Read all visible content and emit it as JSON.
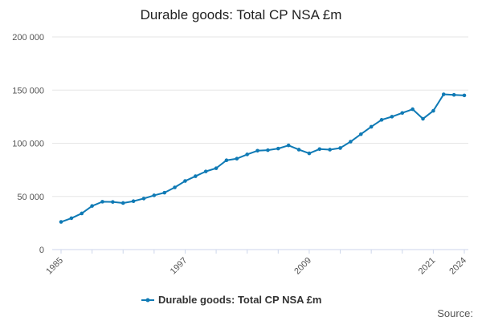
{
  "chart_data": {
    "type": "line",
    "title": "Durable goods: Total CP NSA £m",
    "xlabel": "",
    "ylabel": "",
    "x": [
      1985,
      1986,
      1987,
      1988,
      1989,
      1990,
      1991,
      1992,
      1993,
      1994,
      1995,
      1996,
      1997,
      1998,
      1999,
      2000,
      2001,
      2002,
      2003,
      2004,
      2005,
      2006,
      2007,
      2008,
      2009,
      2010,
      2011,
      2012,
      2013,
      2014,
      2015,
      2016,
      2017,
      2018,
      2019,
      2020,
      2021,
      2022,
      2023,
      2024
    ],
    "series": [
      {
        "name": "Durable goods: Total CP NSA £m",
        "color": "#0f7ab5",
        "values": [
          26000,
          29500,
          34000,
          41000,
          45000,
          44800,
          43800,
          45500,
          48000,
          51000,
          53500,
          58500,
          64500,
          69000,
          73500,
          76500,
          84000,
          85500,
          89500,
          93000,
          93500,
          95000,
          98000,
          94000,
          90500,
          94500,
          94000,
          95500,
          101500,
          108500,
          115500,
          122000,
          125000,
          128500,
          132000,
          123000,
          130500,
          146000,
          145500,
          145000
        ]
      }
    ],
    "xticks": [
      "1985",
      "1997",
      "2009",
      "2021",
      "2024"
    ],
    "yticks": [
      "0",
      "50 000",
      "100 000",
      "150 000",
      "200 000"
    ],
    "ylim": [
      0,
      200000
    ],
    "grid": true,
    "legend": "bottom-center"
  },
  "footer": {
    "source_label": "Source:"
  }
}
